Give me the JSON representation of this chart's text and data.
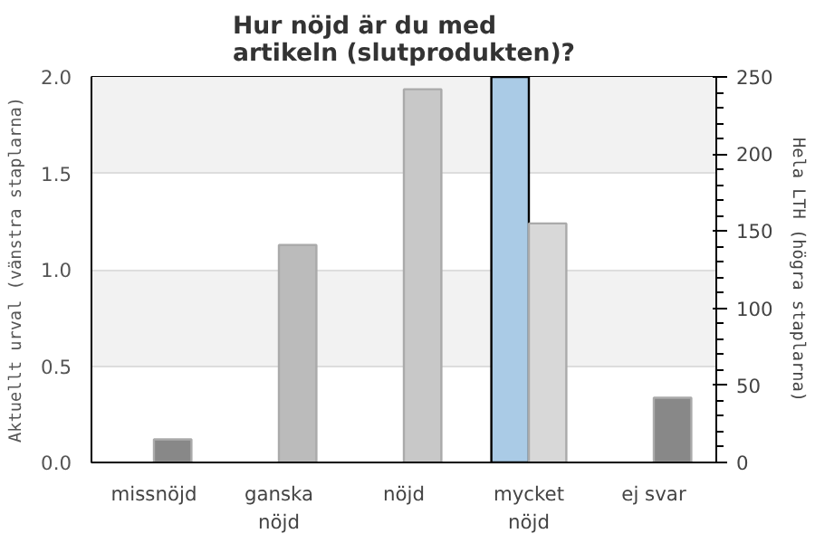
{
  "chart_data": {
    "type": "bar",
    "title": "Hur nöjd är du med\nartikeln (slutprodukten)?",
    "categories": [
      "missnöjd",
      "ganska\nnöjd",
      "nöjd",
      "mycket\nnöjd",
      "ej svar"
    ],
    "series": [
      {
        "name": null,
        "color": "#aacbe6",
        "values": [
          null,
          null,
          null,
          2,
          null
        ]
      },
      {
        "name": null,
        "axis": "y2",
        "colors": [
          "#888888",
          "#bbbbbb",
          "#c8c8c8",
          "#d8d8d8",
          "#888888"
        ],
        "values": [
          15,
          141,
          242,
          155,
          42
        ]
      }
    ],
    "ylabel": "Aktuellt urval (vänstra staplarna)",
    "y2label": "Hela LTH (högra staplarna)",
    "ylim": [
      0,
      2
    ],
    "yticks": [
      {
        "value": 0,
        "label": "0.0"
      },
      {
        "value": 0.5,
        "label": "0.5"
      },
      {
        "value": 1,
        "label": "1.0"
      },
      {
        "value": 1.5,
        "label": "1.5"
      },
      {
        "value": 2,
        "label": "2.0"
      }
    ],
    "y2lim": [
      0,
      250
    ],
    "y2ticks": [
      0,
      50,
      100,
      150,
      200,
      250
    ],
    "grid": "y"
  }
}
